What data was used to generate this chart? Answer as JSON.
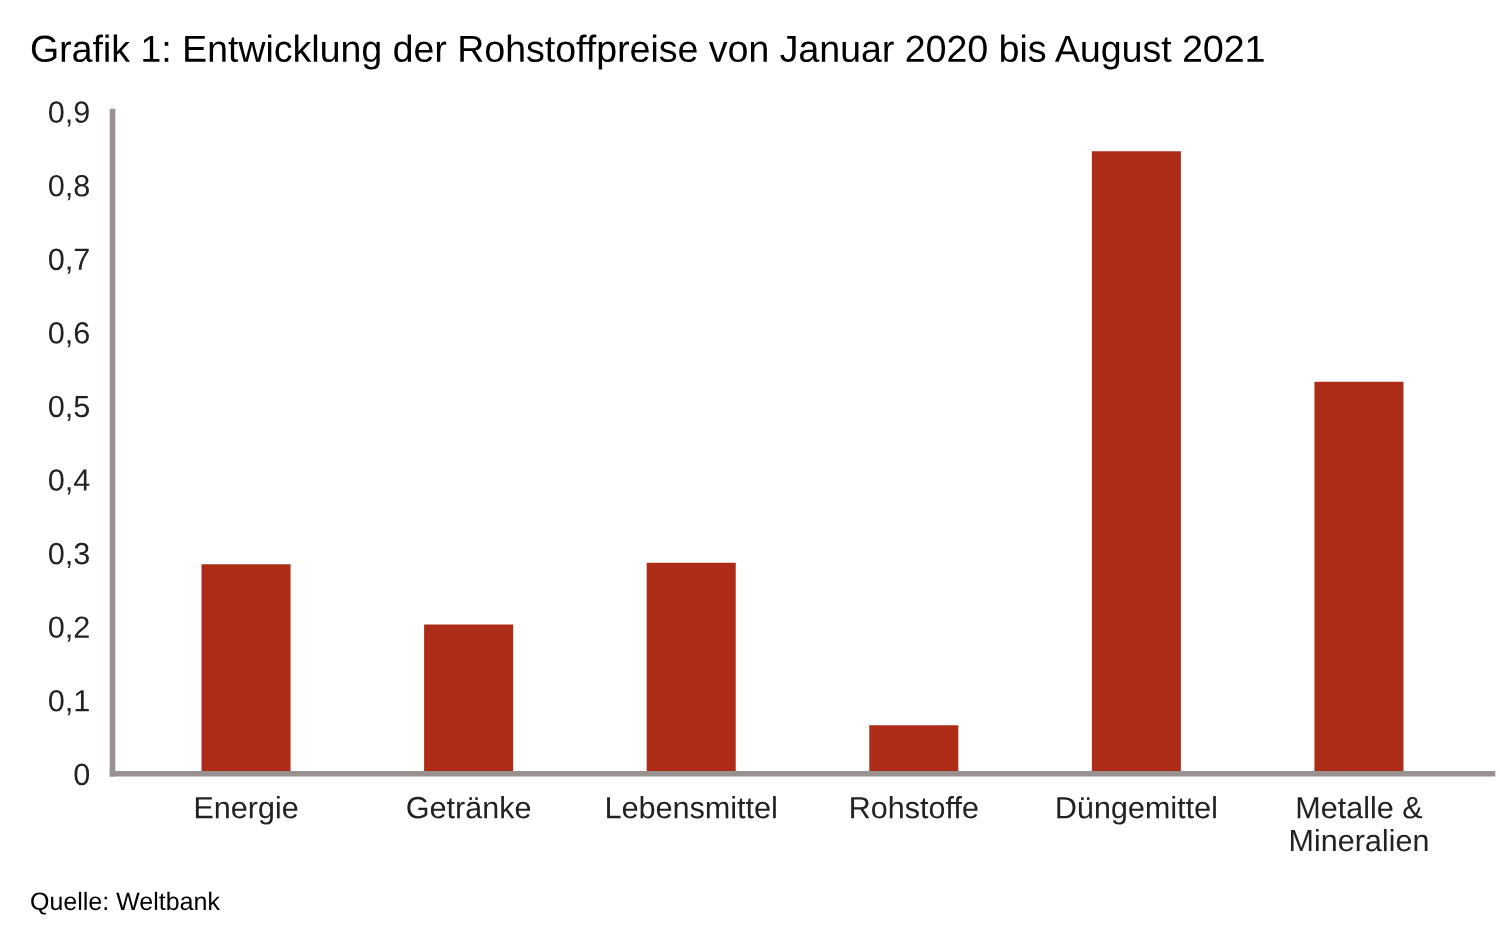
{
  "chart_data": {
    "type": "bar",
    "title": "Grafik 1: Entwicklung der Rohstoffpreise von Januar 2020 bis August 2021",
    "categories": [
      "Energie",
      "Getränke",
      "Lebensmittel",
      "Rohstoffe",
      "Düngemittel",
      "Metalle &\nMineralien"
    ],
    "values": [
      0.285,
      0.203,
      0.287,
      0.066,
      0.846,
      0.533
    ],
    "color": "#ad2c17",
    "ylim": [
      0,
      0.9
    ],
    "yticks": [
      {
        "value": 0,
        "label": "0"
      },
      {
        "value": 0.1,
        "label": "0,1"
      },
      {
        "value": 0.2,
        "label": "0,2"
      },
      {
        "value": 0.3,
        "label": "0,3"
      },
      {
        "value": 0.4,
        "label": "0,4"
      },
      {
        "value": 0.5,
        "label": "0,5"
      },
      {
        "value": 0.6,
        "label": "0,6"
      },
      {
        "value": 0.7,
        "label": "0,7"
      },
      {
        "value": 0.8,
        "label": "0,8"
      },
      {
        "value": 0.9,
        "label": "0,9"
      }
    ],
    "grid": false,
    "legend": false,
    "annotations": [
      "Quelle: Weltbank"
    ]
  }
}
